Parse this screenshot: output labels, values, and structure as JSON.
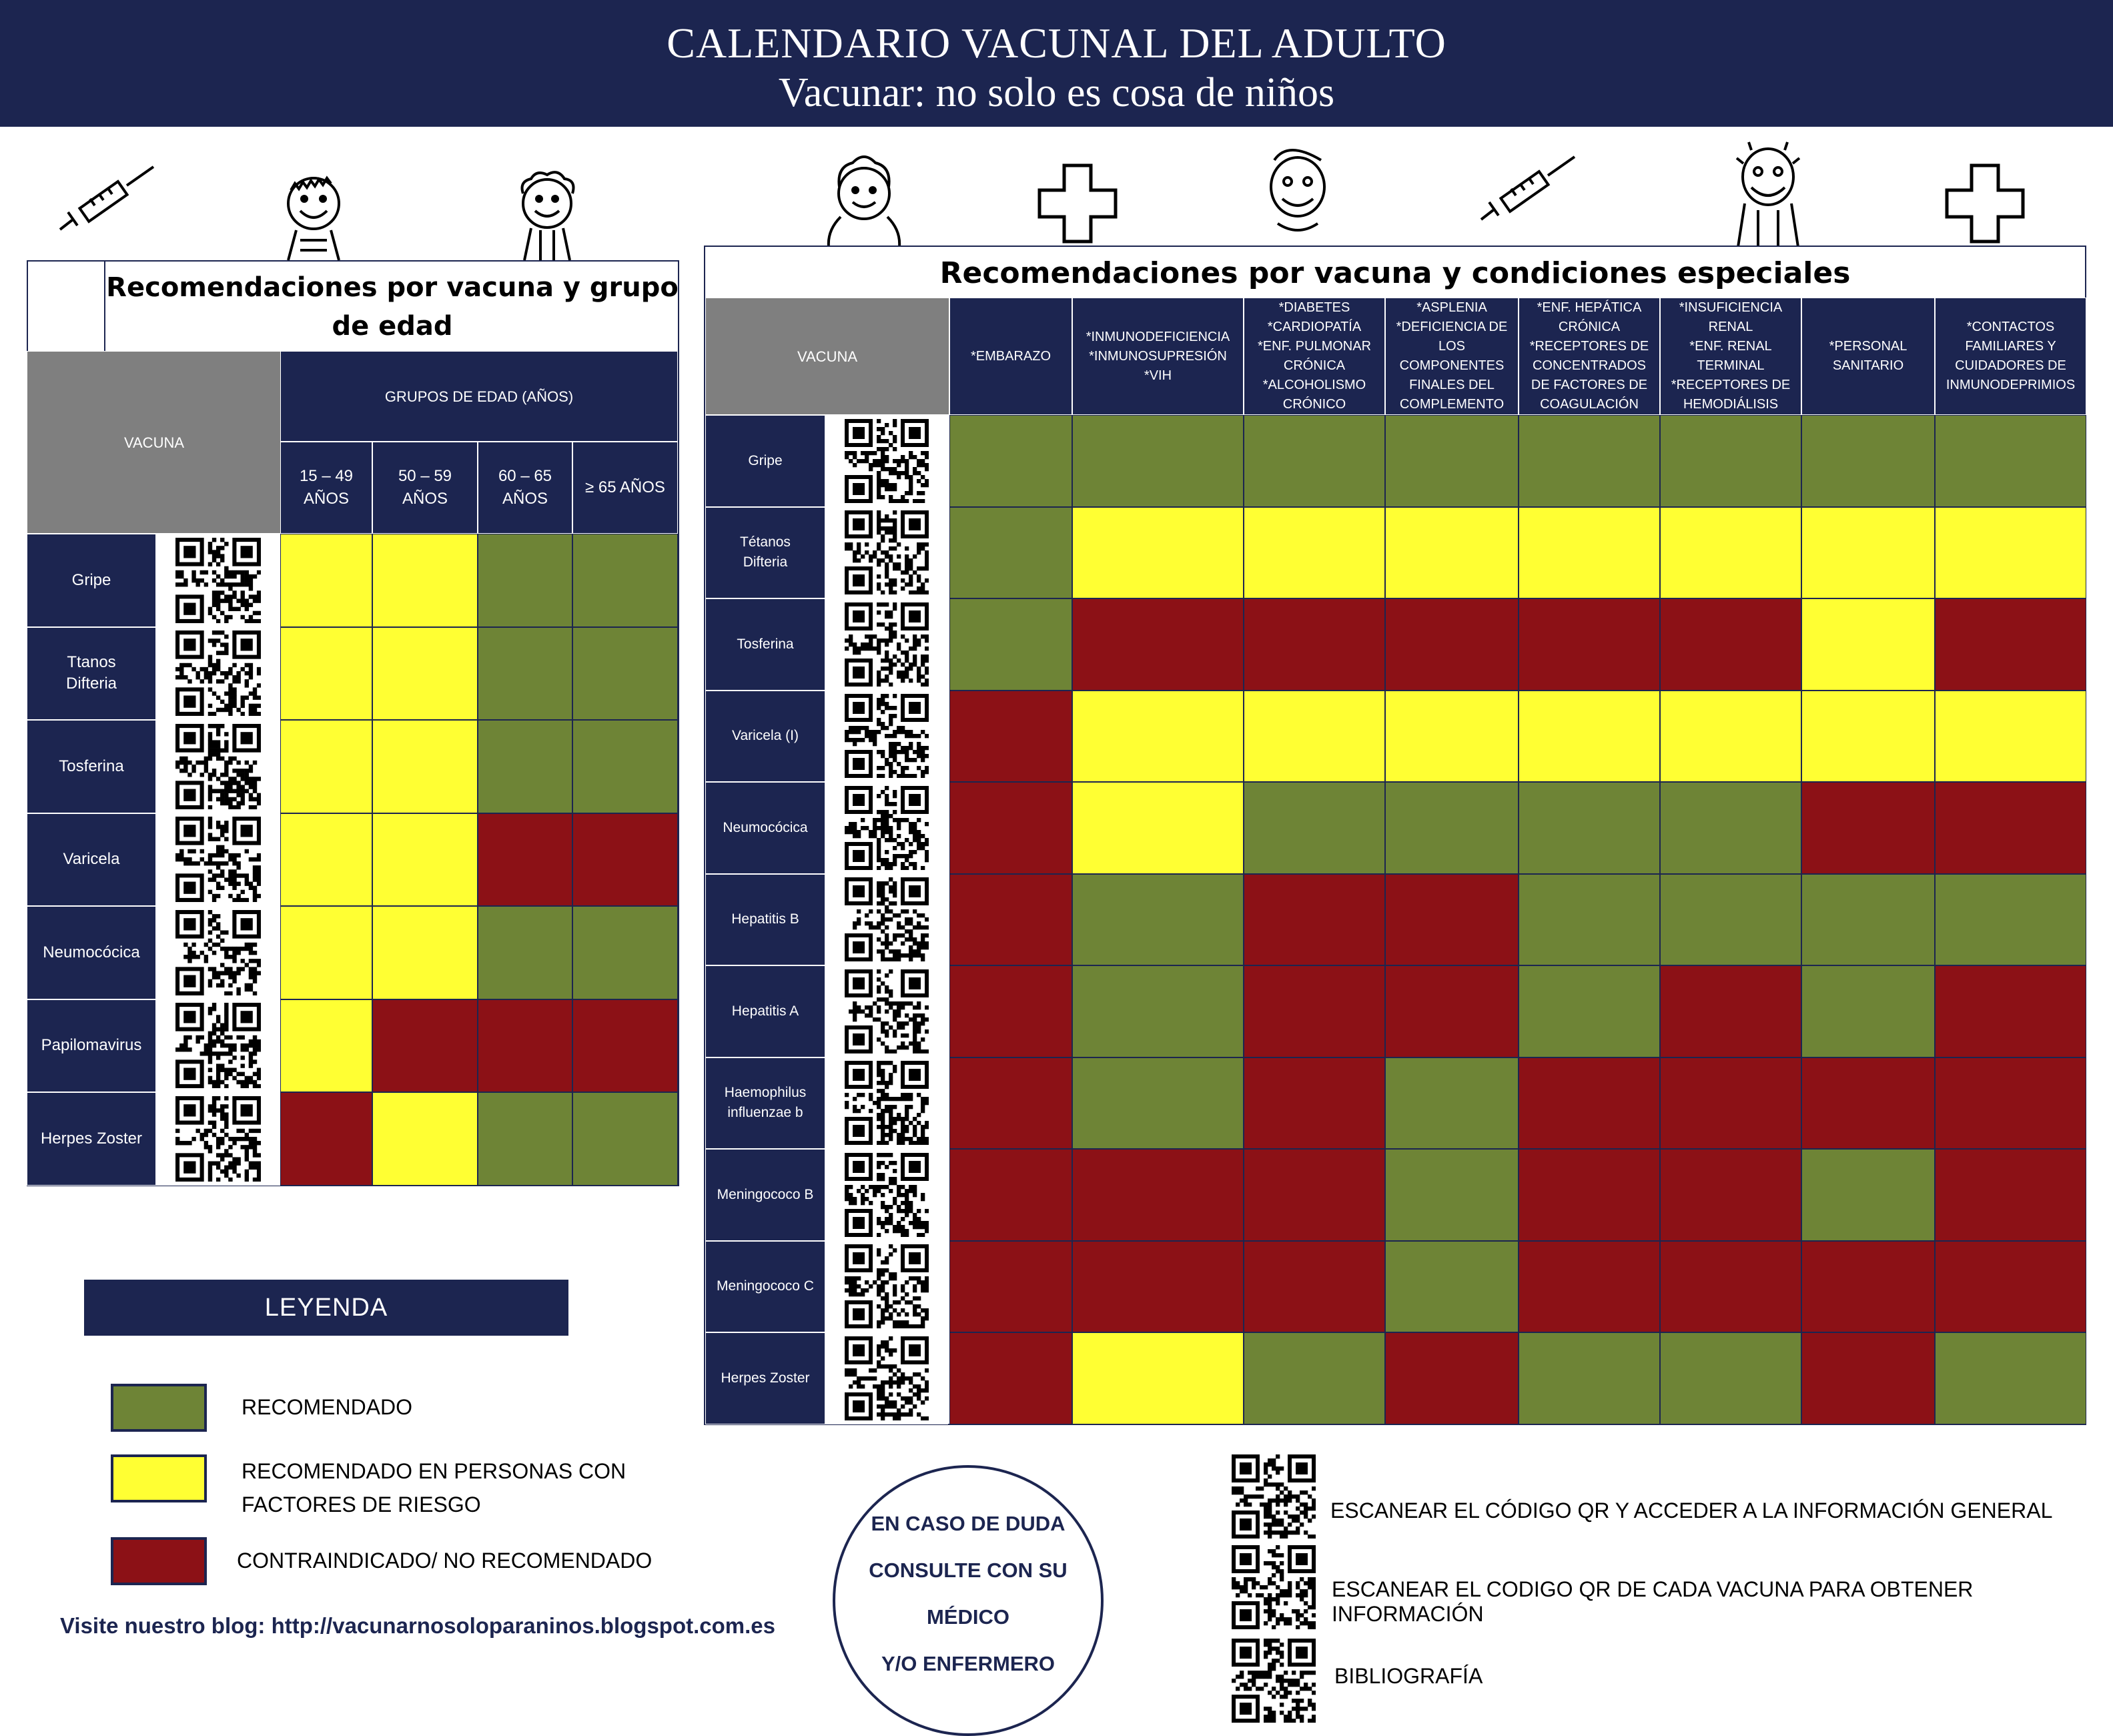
{
  "header": {
    "title": "CALENDARIO VACUNAL DEL ADULTO",
    "subtitle": "Vacunar: no solo es cosa de niños"
  },
  "colors": {
    "recommended": "#6e8436",
    "risk": "#ffff33",
    "contraindicated": "#8c1116",
    "navy": "#1c2550"
  },
  "age_table": {
    "title": "Recomendaciones por vacuna y grupo de edad",
    "vacuna_header": "VACUNA",
    "group_header": "GRUPOS DE EDAD (AÑOS)",
    "columns": [
      "15 – 49\nAÑOS",
      "50 – 59\nAÑOS",
      "60 – 65\nAÑOS",
      "≥ 65 AÑOS"
    ],
    "rows": [
      {
        "vaccine": "Gripe",
        "cells": [
          "Y",
          "Y",
          "G",
          "G"
        ]
      },
      {
        "vaccine": "Ttanos\nDifteria",
        "cells": [
          "Y",
          "Y",
          "G",
          "G"
        ]
      },
      {
        "vaccine": "Tosferina",
        "cells": [
          "Y",
          "Y",
          "G",
          "G"
        ]
      },
      {
        "vaccine": "Varicela",
        "cells": [
          "Y",
          "Y",
          "R",
          "R"
        ]
      },
      {
        "vaccine": "Neumocócica",
        "cells": [
          "Y",
          "Y",
          "G",
          "G"
        ]
      },
      {
        "vaccine": "Papilomavirus",
        "cells": [
          "Y",
          "R",
          "R",
          "R"
        ]
      },
      {
        "vaccine": "Herpes Zoster",
        "cells": [
          "R",
          "Y",
          "G",
          "G"
        ]
      }
    ]
  },
  "cond_table": {
    "title": "Recomendaciones por vacuna y condiciones especiales",
    "vacuna_header": "VACUNA",
    "columns": [
      "*EMBARAZO",
      "*INMUNODEFICIENCIA\n*INMUNOSUPRESIÓN\n*VIH",
      "*DIABETES\n*CARDIOPATÍA\n*ENF. PULMONAR\nCRÓNICA\n*ALCOHOLISMO\nCRÓNICO",
      "*ASPLENIA\n*DEFICIENCIA DE\nLOS\nCOMPONENTES\nFINALES DEL\nCOMPLEMENTO",
      "*ENF. HEPÁTICA\nCRÓNICA\n*RECEPTORES DE\nCONCENTRADOS\nDE FACTORES DE\nCOAGULACIÓN",
      "*INSUFICIENCIA\nRENAL\n*ENF. RENAL\nTERMINAL\n*RECEPTORES DE\nHEMODIÁLISIS",
      "*PERSONAL\nSANITARIO",
      "*CONTACTOS\nFAMILIARES Y\nCUIDADORES DE\nINMUNODEPRIMIOS"
    ],
    "rows": [
      {
        "vaccine": "Gripe",
        "cells": [
          "G",
          "G",
          "G",
          "G",
          "G",
          "G",
          "G",
          "G"
        ]
      },
      {
        "vaccine": "Tétanos\nDifteria",
        "cells": [
          "G",
          "Y",
          "Y",
          "Y",
          "Y",
          "Y",
          "Y",
          "Y"
        ]
      },
      {
        "vaccine": "Tosferina",
        "cells": [
          "G",
          "R",
          "R",
          "R",
          "R",
          "R",
          "Y",
          "R"
        ]
      },
      {
        "vaccine": "Varicela (I)",
        "cells": [
          "R",
          "Y",
          "Y",
          "Y",
          "Y",
          "Y",
          "Y",
          "Y"
        ]
      },
      {
        "vaccine": "Neumocócica",
        "cells": [
          "R",
          "Y",
          "G",
          "G",
          "G",
          "G",
          "R",
          "R"
        ]
      },
      {
        "vaccine": "Hepatitis B",
        "cells": [
          "R",
          "G",
          "R",
          "R",
          "G",
          "G",
          "G",
          "G"
        ]
      },
      {
        "vaccine": "Hepatitis A",
        "cells": [
          "R",
          "G",
          "R",
          "R",
          "G",
          "R",
          "G",
          "R"
        ]
      },
      {
        "vaccine": "Haemophilus\ninfluenzae b",
        "cells": [
          "R",
          "G",
          "R",
          "G",
          "R",
          "R",
          "R",
          "R"
        ]
      },
      {
        "vaccine": "Meningococo B",
        "cells": [
          "R",
          "R",
          "R",
          "G",
          "R",
          "R",
          "G",
          "R"
        ]
      },
      {
        "vaccine": "Meningococo C",
        "cells": [
          "R",
          "R",
          "R",
          "G",
          "R",
          "R",
          "R",
          "R"
        ]
      },
      {
        "vaccine": "Herpes Zoster",
        "cells": [
          "R",
          "Y",
          "G",
          "R",
          "G",
          "G",
          "R",
          "G"
        ]
      }
    ]
  },
  "legend": {
    "title": "LEYENDA",
    "items": [
      {
        "color": "G",
        "label": "RECOMENDADO"
      },
      {
        "color": "Y",
        "label": "RECOMENDADO EN PERSONAS CON\nFACTORES DE RIESGO"
      },
      {
        "color": "R",
        "label": "CONTRAINDICADO/ NO RECOMENDADO"
      }
    ]
  },
  "blog": "Visite nuestro blog: http://vacunarnosoloparaninos.blogspot.com.es",
  "doubt": [
    "EN CASO DE DUDA",
    "CONSULTE CON SU",
    "MÉDICO",
    "Y/O ENFERMERO"
  ],
  "qr_info": [
    "ESCANEAR EL CÓDIGO QR Y ACCEDER A LA INFORMACIÓN GENERAL",
    "ESCANEAR EL CODIGO QR DE CADA VACUNA PARA OBTENER INFORMACIÓN",
    "BIBLIOGRAFÍA"
  ]
}
